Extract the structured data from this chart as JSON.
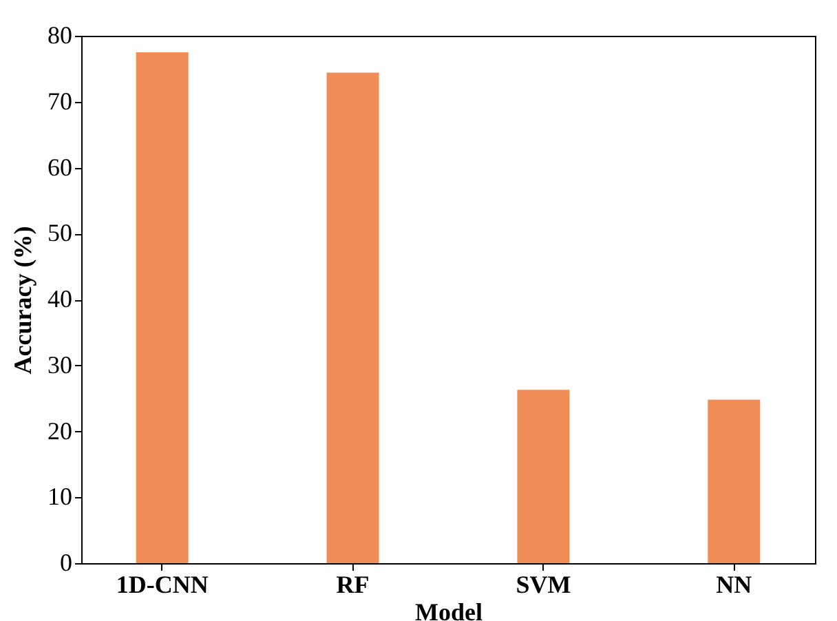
{
  "chart_data": {
    "type": "bar",
    "xlabel": "Model",
    "ylabel": "Accuracy (%)",
    "categories": [
      "1D-CNN",
      "RF",
      "SVM",
      "NN"
    ],
    "values": [
      77.5,
      74.4,
      26.3,
      24.8
    ],
    "color": "#f08c55",
    "ylim": [
      0,
      80
    ],
    "yticks": [
      0,
      10,
      20,
      30,
      40,
      50,
      60,
      70,
      80
    ],
    "grid": false
  }
}
